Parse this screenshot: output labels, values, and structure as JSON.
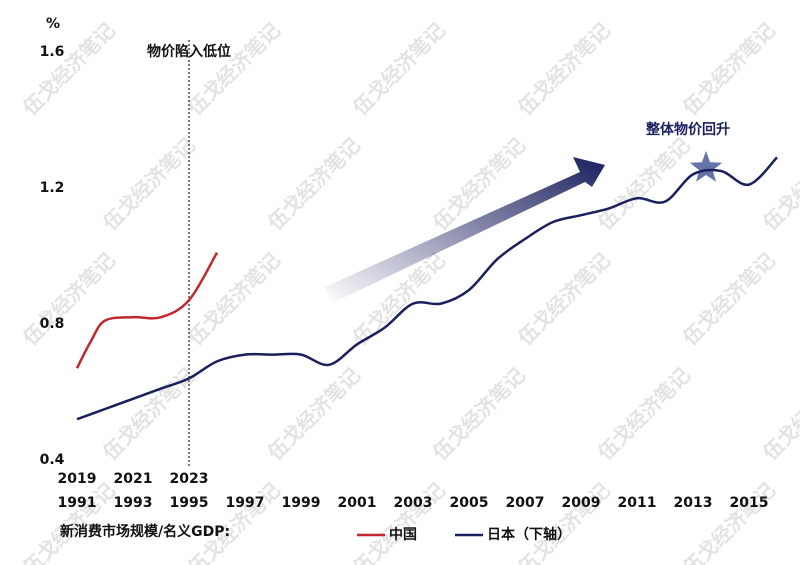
{
  "chart_data": {
    "type": "line",
    "y_unit": "%",
    "ylim": [
      0.4,
      1.6
    ],
    "yticks": [
      0.4,
      0.8,
      1.2,
      1.6
    ],
    "xlim": [
      1991,
      2016
    ],
    "xticks": [
      1991,
      1993,
      1995,
      1997,
      1999,
      2001,
      2003,
      2005,
      2007,
      2009,
      2011,
      2013,
      2015
    ],
    "x2lim": [
      2019,
      2044
    ],
    "x2ticks": [
      2019,
      2021,
      2023
    ],
    "legend_title": "新消费市场规模/名义GDP:",
    "annotations": [
      {
        "text": "物价陷入低位",
        "x": 2023,
        "axis": "x2"
      },
      {
        "text": "整体物价回升"
      }
    ],
    "watermark": "伍戈经济笔记",
    "series": [
      {
        "name": "中国",
        "color": "#c0282d",
        "axis": "x2",
        "x": [
          2019,
          2019.5,
          2020,
          2021,
          2022,
          2023,
          2024
        ],
        "values": [
          0.67,
          0.75,
          0.81,
          0.82,
          0.82,
          0.87,
          1.01
        ]
      },
      {
        "name": "日本（下轴）",
        "color": "#1a1f5e",
        "x": [
          1991,
          1992,
          1993,
          1994,
          1995,
          1996,
          1997,
          1998,
          1999,
          2000,
          2001,
          2002,
          2003,
          2004,
          2005,
          2006,
          2007,
          2008,
          2009,
          2010,
          2011,
          2012,
          2013,
          2014,
          2015,
          2016
        ],
        "values": [
          0.52,
          0.55,
          0.58,
          0.61,
          0.64,
          0.69,
          0.71,
          0.71,
          0.71,
          0.68,
          0.74,
          0.79,
          0.86,
          0.86,
          0.9,
          0.99,
          1.05,
          1.1,
          1.12,
          1.14,
          1.17,
          1.16,
          1.24,
          1.25,
          1.21,
          1.29
        ]
      }
    ]
  }
}
